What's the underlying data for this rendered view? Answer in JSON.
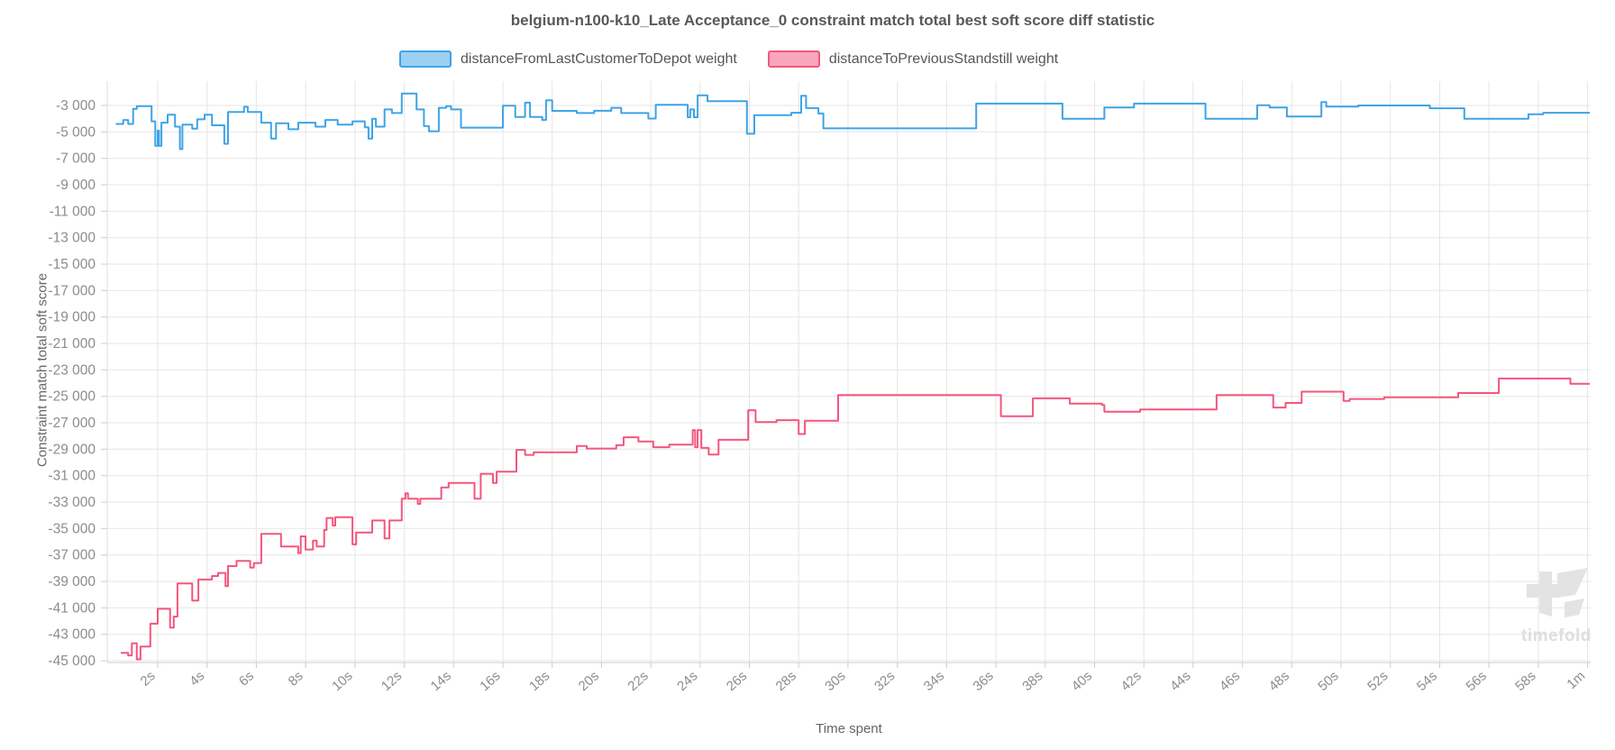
{
  "title": "belgium-n100-k10_Late Acceptance_0 constraint match total best soft score diff statistic",
  "legend": [
    {
      "label": "distanceFromLastCustomerToDepot weight",
      "fill": "#9dcff2",
      "stroke": "#3fa3e6"
    },
    {
      "label": "distanceToPreviousStandstill weight",
      "fill": "#f9a6bc",
      "stroke": "#f4567e"
    }
  ],
  "watermark": "timefold",
  "colors": {
    "grid": "#e5e5e5",
    "axis": "#cccccc",
    "tick_text": "#8c8c8c"
  },
  "chart_data": {
    "type": "line",
    "step": true,
    "title": "belgium-n100-k10_Late Acceptance_0 constraint match total best soft score diff statistic",
    "xlabel": "Time spent",
    "ylabel": "Constraint match total soft score",
    "xlim_seconds": [
      0,
      60
    ],
    "ylim": [
      -45000,
      -1000
    ],
    "grid": true,
    "legend_position": "top",
    "x_ticks": [
      {
        "t": 2,
        "label": "2s"
      },
      {
        "t": 4,
        "label": "4s"
      },
      {
        "t": 6,
        "label": "6s"
      },
      {
        "t": 8,
        "label": "8s"
      },
      {
        "t": 10,
        "label": "10s"
      },
      {
        "t": 12,
        "label": "12s"
      },
      {
        "t": 14,
        "label": "14s"
      },
      {
        "t": 16,
        "label": "16s"
      },
      {
        "t": 18,
        "label": "18s"
      },
      {
        "t": 20,
        "label": "20s"
      },
      {
        "t": 22,
        "label": "22s"
      },
      {
        "t": 24,
        "label": "24s"
      },
      {
        "t": 26,
        "label": "26s"
      },
      {
        "t": 28,
        "label": "28s"
      },
      {
        "t": 30,
        "label": "30s"
      },
      {
        "t": 32,
        "label": "32s"
      },
      {
        "t": 34,
        "label": "34s"
      },
      {
        "t": 36,
        "label": "36s"
      },
      {
        "t": 38,
        "label": "38s"
      },
      {
        "t": 40,
        "label": "40s"
      },
      {
        "t": 42,
        "label": "42s"
      },
      {
        "t": 44,
        "label": "44s"
      },
      {
        "t": 46,
        "label": "46s"
      },
      {
        "t": 48,
        "label": "48s"
      },
      {
        "t": 50,
        "label": "50s"
      },
      {
        "t": 52,
        "label": "52s"
      },
      {
        "t": 54,
        "label": "54s"
      },
      {
        "t": 56,
        "label": "56s"
      },
      {
        "t": 58,
        "label": "58s"
      },
      {
        "t": 60,
        "label": "1m"
      }
    ],
    "y_ticks": [
      {
        "v": -3000,
        "label": "-3 000"
      },
      {
        "v": -5000,
        "label": "-5 000"
      },
      {
        "v": -7000,
        "label": "-7 000"
      },
      {
        "v": -9000,
        "label": "-9 000"
      },
      {
        "v": -11000,
        "label": "-11 000"
      },
      {
        "v": -13000,
        "label": "-13 000"
      },
      {
        "v": -15000,
        "label": "-15 000"
      },
      {
        "v": -17000,
        "label": "-17 000"
      },
      {
        "v": -19000,
        "label": "-19 000"
      },
      {
        "v": -21000,
        "label": "-21 000"
      },
      {
        "v": -23000,
        "label": "-23 000"
      },
      {
        "v": -25000,
        "label": "-25 000"
      },
      {
        "v": -27000,
        "label": "-27 000"
      },
      {
        "v": -29000,
        "label": "-29 000"
      },
      {
        "v": -31000,
        "label": "-31 000"
      },
      {
        "v": -33000,
        "label": "-33 000"
      },
      {
        "v": -35000,
        "label": "-35 000"
      },
      {
        "v": -37000,
        "label": "-37 000"
      },
      {
        "v": -39000,
        "label": "-39 000"
      },
      {
        "v": -41000,
        "label": "-41 000"
      },
      {
        "v": -43000,
        "label": "-43 000"
      },
      {
        "v": -45000,
        "label": "-45 000"
      }
    ],
    "series": [
      {
        "name": "distanceFromLastCustomerToDepot weight",
        "color": "#3fa3e6",
        "points": [
          [
            0.3,
            -4400
          ],
          [
            0.6,
            -4100
          ],
          [
            0.8,
            -4400
          ],
          [
            1.0,
            -3250
          ],
          [
            1.15,
            -3050
          ],
          [
            1.75,
            -4200
          ],
          [
            1.9,
            -6050
          ],
          [
            2.0,
            -4900
          ],
          [
            2.05,
            -6050
          ],
          [
            2.15,
            -4300
          ],
          [
            2.4,
            -3700
          ],
          [
            2.7,
            -4600
          ],
          [
            2.9,
            -6300
          ],
          [
            3.0,
            -4450
          ],
          [
            3.4,
            -4750
          ],
          [
            3.6,
            -4050
          ],
          [
            3.9,
            -3700
          ],
          [
            4.2,
            -4500
          ],
          [
            4.7,
            -5900
          ],
          [
            4.85,
            -3500
          ],
          [
            5.5,
            -3100
          ],
          [
            5.65,
            -3500
          ],
          [
            6.2,
            -4300
          ],
          [
            6.6,
            -5500
          ],
          [
            6.8,
            -4350
          ],
          [
            7.3,
            -4800
          ],
          [
            7.7,
            -4300
          ],
          [
            8.4,
            -4600
          ],
          [
            8.8,
            -4100
          ],
          [
            9.3,
            -4450
          ],
          [
            9.9,
            -4200
          ],
          [
            10.4,
            -4650
          ],
          [
            10.55,
            -5500
          ],
          [
            10.7,
            -4000
          ],
          [
            10.85,
            -4600
          ],
          [
            11.2,
            -3300
          ],
          [
            11.5,
            -3570
          ],
          [
            11.9,
            -2100
          ],
          [
            12.5,
            -3300
          ],
          [
            12.8,
            -4560
          ],
          [
            13.0,
            -4950
          ],
          [
            13.4,
            -3180
          ],
          [
            13.7,
            -3050
          ],
          [
            13.9,
            -3300
          ],
          [
            14.3,
            -4680
          ],
          [
            16.0,
            -3020
          ],
          [
            16.5,
            -3870
          ],
          [
            16.9,
            -2790
          ],
          [
            17.1,
            -3870
          ],
          [
            17.6,
            -4100
          ],
          [
            17.75,
            -2610
          ],
          [
            18.0,
            -3410
          ],
          [
            19.0,
            -3570
          ],
          [
            19.7,
            -3400
          ],
          [
            20.4,
            -3180
          ],
          [
            20.8,
            -3570
          ],
          [
            21.9,
            -3990
          ],
          [
            22.2,
            -2950
          ],
          [
            23.5,
            -3890
          ],
          [
            23.6,
            -3300
          ],
          [
            23.75,
            -3890
          ],
          [
            23.9,
            -2230
          ],
          [
            24.3,
            -2680
          ],
          [
            25.9,
            -5140
          ],
          [
            26.2,
            -3730
          ],
          [
            27.7,
            -3550
          ],
          [
            28.1,
            -2270
          ],
          [
            28.3,
            -3200
          ],
          [
            28.8,
            -3610
          ],
          [
            29.0,
            -4730
          ],
          [
            35.2,
            -2860
          ],
          [
            38.7,
            -4000
          ],
          [
            40.4,
            -3160
          ],
          [
            41.6,
            -2860
          ],
          [
            44.5,
            -4000
          ],
          [
            46.6,
            -2980
          ],
          [
            47.1,
            -3160
          ],
          [
            47.8,
            -3830
          ],
          [
            49.2,
            -2750
          ],
          [
            49.4,
            -3090
          ],
          [
            50.7,
            -3000
          ],
          [
            53.6,
            -3210
          ],
          [
            55.0,
            -4000
          ],
          [
            57.6,
            -3660
          ],
          [
            58.2,
            -3550
          ]
        ]
      },
      {
        "name": "distanceToPreviousStandstill weight",
        "color": "#f4567e",
        "points": [
          [
            0.5,
            -44400
          ],
          [
            0.8,
            -44600
          ],
          [
            0.95,
            -43680
          ],
          [
            1.15,
            -44890
          ],
          [
            1.3,
            -43930
          ],
          [
            1.7,
            -42200
          ],
          [
            2.0,
            -41070
          ],
          [
            2.5,
            -42500
          ],
          [
            2.65,
            -41660
          ],
          [
            2.8,
            -39160
          ],
          [
            3.4,
            -40450
          ],
          [
            3.65,
            -38860
          ],
          [
            4.2,
            -38590
          ],
          [
            4.45,
            -38360
          ],
          [
            4.75,
            -39360
          ],
          [
            4.85,
            -37840
          ],
          [
            5.2,
            -37450
          ],
          [
            5.75,
            -37950
          ],
          [
            5.9,
            -37610
          ],
          [
            6.2,
            -35410
          ],
          [
            7.0,
            -36360
          ],
          [
            7.7,
            -36860
          ],
          [
            7.8,
            -35590
          ],
          [
            8.0,
            -36590
          ],
          [
            8.3,
            -35910
          ],
          [
            8.45,
            -36360
          ],
          [
            8.75,
            -35110
          ],
          [
            8.85,
            -34200
          ],
          [
            9.1,
            -34770
          ],
          [
            9.2,
            -34140
          ],
          [
            9.9,
            -36200
          ],
          [
            10.05,
            -35300
          ],
          [
            10.7,
            -34390
          ],
          [
            11.2,
            -35750
          ],
          [
            11.4,
            -34390
          ],
          [
            11.9,
            -32750
          ],
          [
            12.05,
            -32340
          ],
          [
            12.15,
            -32750
          ],
          [
            12.55,
            -33140
          ],
          [
            12.65,
            -32750
          ],
          [
            13.5,
            -31890
          ],
          [
            13.8,
            -31550
          ],
          [
            14.85,
            -32750
          ],
          [
            15.1,
            -30860
          ],
          [
            15.6,
            -31550
          ],
          [
            15.75,
            -30700
          ],
          [
            16.55,
            -29050
          ],
          [
            16.9,
            -29430
          ],
          [
            17.25,
            -29230
          ],
          [
            19.0,
            -28750
          ],
          [
            19.4,
            -28950
          ],
          [
            20.6,
            -28700
          ],
          [
            20.9,
            -28100
          ],
          [
            21.5,
            -28420
          ],
          [
            22.1,
            -28850
          ],
          [
            22.75,
            -28650
          ],
          [
            23.7,
            -27550
          ],
          [
            23.8,
            -28850
          ],
          [
            23.9,
            -27550
          ],
          [
            24.05,
            -28900
          ],
          [
            24.35,
            -29400
          ],
          [
            24.75,
            -28290
          ],
          [
            25.95,
            -26050
          ],
          [
            26.25,
            -26950
          ],
          [
            27.1,
            -26800
          ],
          [
            28.0,
            -27850
          ],
          [
            28.25,
            -26850
          ],
          [
            29.6,
            -24900
          ],
          [
            36.2,
            -26500
          ],
          [
            37.5,
            -25150
          ],
          [
            39.0,
            -25550
          ],
          [
            40.3,
            -25650
          ],
          [
            40.4,
            -26170
          ],
          [
            41.85,
            -26000
          ],
          [
            44.95,
            -24900
          ],
          [
            47.25,
            -25850
          ],
          [
            47.75,
            -25500
          ],
          [
            48.4,
            -24650
          ],
          [
            50.1,
            -25350
          ],
          [
            50.35,
            -25200
          ],
          [
            51.75,
            -25070
          ],
          [
            54.75,
            -24750
          ],
          [
            56.4,
            -23650
          ],
          [
            59.3,
            -24050
          ]
        ]
      }
    ]
  }
}
